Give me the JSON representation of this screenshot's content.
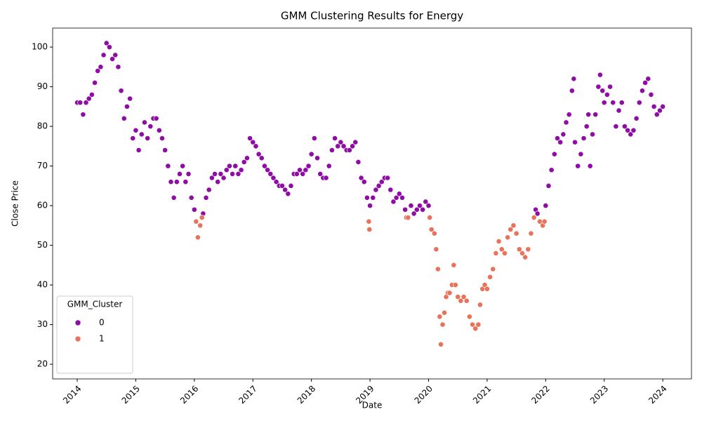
{
  "chart_data": {
    "type": "scatter",
    "title": "GMM Clustering Results for Energy",
    "xlabel": "Date",
    "ylabel": "Close Price",
    "legend_title": "GMM_Cluster",
    "legend": "lower left",
    "xlim": [
      2013.58,
      2024.49
    ],
    "ylim": [
      16.3,
      104.8
    ],
    "xticks": [
      2014,
      2015,
      2016,
      2017,
      2018,
      2019,
      2020,
      2021,
      2022,
      2023,
      2024
    ],
    "yticks": [
      20,
      30,
      40,
      50,
      60,
      70,
      80,
      90,
      100
    ],
    "series": [
      {
        "name": "0",
        "color": "#8f0da4",
        "x": [
          2014.0,
          2014.05,
          2014.1,
          2014.15,
          2014.2,
          2014.25,
          2014.3,
          2014.35,
          2014.4,
          2014.45,
          2014.5,
          2014.55,
          2014.6,
          2014.65,
          2014.7,
          2014.75,
          2014.8,
          2014.85,
          2014.9,
          2014.95,
          2015.0,
          2015.05,
          2015.1,
          2015.15,
          2015.2,
          2015.25,
          2015.3,
          2015.35,
          2015.4,
          2015.45,
          2015.5,
          2015.55,
          2015.6,
          2015.65,
          2015.7,
          2015.75,
          2015.8,
          2015.85,
          2015.9,
          2015.95,
          2016.0,
          2016.15,
          2016.2,
          2016.25,
          2016.3,
          2016.35,
          2016.4,
          2016.45,
          2016.5,
          2016.55,
          2016.6,
          2016.65,
          2016.7,
          2016.75,
          2016.8,
          2016.85,
          2016.9,
          2016.95,
          2017.0,
          2017.05,
          2017.1,
          2017.15,
          2017.2,
          2017.25,
          2017.3,
          2017.35,
          2017.4,
          2017.45,
          2017.5,
          2017.55,
          2017.6,
          2017.65,
          2017.7,
          2017.75,
          2017.8,
          2017.85,
          2017.9,
          2017.95,
          2018.0,
          2018.05,
          2018.1,
          2018.15,
          2018.2,
          2018.25,
          2018.3,
          2018.35,
          2018.4,
          2018.45,
          2018.5,
          2018.55,
          2018.6,
          2018.65,
          2018.7,
          2018.75,
          2018.8,
          2018.85,
          2018.9,
          2018.95,
          2019.0,
          2019.05,
          2019.1,
          2019.15,
          2019.2,
          2019.25,
          2019.3,
          2019.35,
          2019.4,
          2019.45,
          2019.5,
          2019.55,
          2019.6,
          2019.7,
          2019.75,
          2019.8,
          2019.85,
          2019.9,
          2019.95,
          2020.0,
          2021.83,
          2021.86,
          2022.0,
          2022.05,
          2022.1,
          2022.15,
          2022.2,
          2022.25,
          2022.3,
          2022.35,
          2022.4,
          2022.45,
          2022.48,
          2022.5,
          2022.55,
          2022.6,
          2022.65,
          2022.7,
          2022.73,
          2022.76,
          2022.8,
          2022.85,
          2022.9,
          2022.93,
          2022.97,
          2023.0,
          2023.05,
          2023.1,
          2023.15,
          2023.2,
          2023.25,
          2023.3,
          2023.35,
          2023.4,
          2023.45,
          2023.5,
          2023.55,
          2023.6,
          2023.65,
          2023.7,
          2023.75,
          2023.8,
          2023.85,
          2023.9,
          2023.95,
          2024.0
        ],
        "values": [
          86,
          86,
          83,
          86,
          87,
          88,
          91,
          94,
          95,
          98,
          101,
          100,
          97,
          98,
          95,
          89,
          82,
          85,
          87,
          77,
          79,
          74,
          78,
          81,
          77,
          80,
          82,
          82,
          79,
          77,
          74,
          70,
          66,
          62,
          66,
          68,
          70,
          66,
          68,
          62,
          59,
          58,
          62,
          64,
          67,
          68,
          66,
          68,
          67,
          69,
          70,
          68,
          70,
          68,
          69,
          71,
          72,
          77,
          76,
          75,
          73,
          72,
          70,
          69,
          68,
          67,
          66,
          65,
          65,
          64,
          63,
          65,
          68,
          68,
          69,
          68,
          69,
          70,
          73,
          77,
          72,
          68,
          67,
          67,
          70,
          74,
          77,
          75,
          76,
          75,
          74,
          74,
          75,
          76,
          71,
          67,
          66,
          62,
          60,
          62,
          64,
          65,
          66,
          67,
          67,
          64,
          61,
          62,
          63,
          62,
          59,
          60,
          58,
          59,
          60,
          59,
          61,
          60,
          59,
          58,
          60,
          65,
          69,
          73,
          77,
          76,
          78,
          81,
          83,
          89,
          92,
          76,
          70,
          73,
          77,
          80,
          83,
          70,
          78,
          83,
          90,
          93,
          89,
          86,
          88,
          90,
          86,
          80,
          84,
          86,
          80,
          79,
          78,
          79,
          82,
          86,
          89,
          91,
          92,
          88,
          85,
          83,
          84,
          85
        ]
      },
      {
        "name": "1",
        "color": "#e8735a",
        "x": [
          2016.03,
          2016.06,
          2016.1,
          2016.13,
          2018.98,
          2018.99,
          2019.62,
          2019.65,
          2020.02,
          2020.05,
          2020.1,
          2020.13,
          2020.16,
          2020.19,
          2020.21,
          2020.24,
          2020.27,
          2020.3,
          2020.33,
          2020.36,
          2020.4,
          2020.43,
          2020.46,
          2020.5,
          2020.55,
          2020.6,
          2020.65,
          2020.7,
          2020.75,
          2020.8,
          2020.85,
          2020.88,
          2020.92,
          2020.96,
          2021.0,
          2021.05,
          2021.1,
          2021.15,
          2021.2,
          2021.25,
          2021.3,
          2021.35,
          2021.4,
          2021.45,
          2021.5,
          2021.55,
          2021.6,
          2021.65,
          2021.7,
          2021.75,
          2021.8,
          2021.9,
          2021.95,
          2021.98
        ],
        "values": [
          56,
          52,
          55,
          57,
          56,
          54,
          57,
          57,
          57,
          54,
          53,
          49,
          44,
          32,
          25,
          30,
          33,
          37,
          38,
          38,
          40,
          45,
          40,
          37,
          36,
          37,
          36,
          32,
          30,
          29,
          30,
          35,
          39,
          40,
          39,
          42,
          44,
          48,
          51,
          49,
          48,
          52,
          54,
          55,
          53,
          49,
          48,
          47,
          49,
          53,
          57,
          56,
          55,
          56
        ]
      }
    ]
  }
}
